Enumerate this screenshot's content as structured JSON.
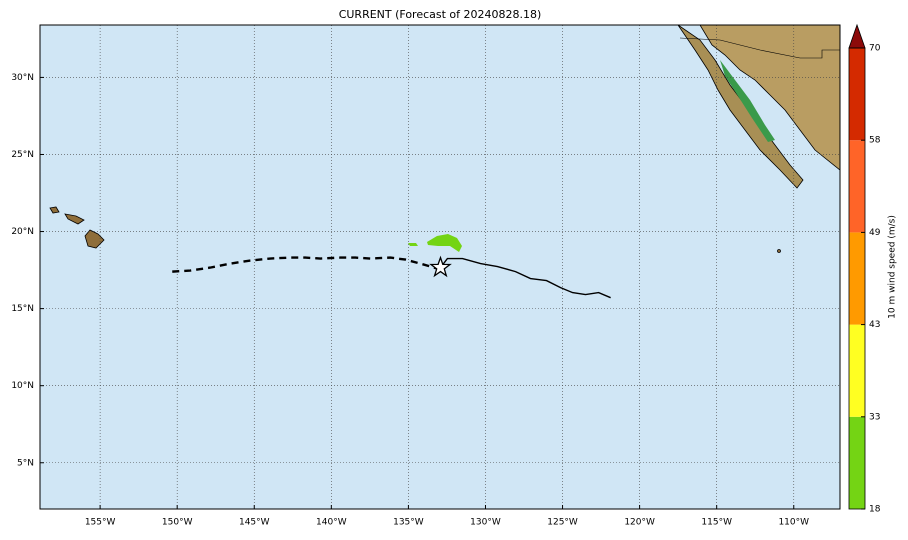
{
  "chart_data": {
    "type": "map",
    "title": "CURRENT (Forecast of 20240828.18)",
    "xlim": [
      -158.9,
      -107.0
    ],
    "ylim": [
      2.0,
      33.4
    ],
    "xticks": [
      {
        "value": -155,
        "label": "155°W"
      },
      {
        "value": -150,
        "label": "150°W"
      },
      {
        "value": -145,
        "label": "145°W"
      },
      {
        "value": -140,
        "label": "140°W"
      },
      {
        "value": -135,
        "label": "135°W"
      },
      {
        "value": -130,
        "label": "130°W"
      },
      {
        "value": -125,
        "label": "125°W"
      },
      {
        "value": -120,
        "label": "120°W"
      },
      {
        "value": -115,
        "label": "115°W"
      },
      {
        "value": -110,
        "label": "110°W"
      }
    ],
    "yticks": [
      {
        "value": 5,
        "label": "5°N"
      },
      {
        "value": 10,
        "label": "10°N"
      },
      {
        "value": 15,
        "label": "15°N"
      },
      {
        "value": 20,
        "label": "20°N"
      },
      {
        "value": 25,
        "label": "25°N"
      },
      {
        "value": 30,
        "label": "30°N"
      }
    ],
    "grid": true,
    "series": [
      {
        "color": "#000000",
        "style": "dashed",
        "x": [
          -150.32,
          -149.16,
          -147.86,
          -146.56,
          -145.26,
          -143.96,
          -142.66,
          -141.69,
          -140.71,
          -139.42,
          -138.44,
          -137.47,
          -136.17,
          -135.19,
          -134.22,
          -133.12
        ],
        "values": [
          17.4,
          17.47,
          17.66,
          17.92,
          18.12,
          18.25,
          18.31,
          18.31,
          18.25,
          18.31,
          18.31,
          18.25,
          18.31,
          18.18,
          17.92,
          17.6
        ]
      },
      {
        "color": "#000000",
        "style": "solid",
        "x": [
          -132.92,
          -132.47,
          -131.49,
          -130.32,
          -129.22,
          -128.05,
          -127.08,
          -126.04,
          -125.13,
          -124.35,
          -123.51,
          -122.66,
          -121.88
        ],
        "values": [
          17.66,
          18.25,
          18.25,
          17.92,
          17.73,
          17.4,
          16.95,
          16.82,
          16.36,
          16.04,
          15.91,
          16.04,
          15.71
        ]
      }
    ],
    "marker": {
      "x": -132.92,
      "y": 17.66
    },
    "colorbar": {
      "label": "10 m wind speed (m/s)",
      "ticks": [
        18,
        33,
        43,
        49,
        58,
        70
      ],
      "colors": [
        "#74d414",
        "#ffff22",
        "#ff9a00",
        "#ff6428",
        "#d42a00"
      ],
      "extend_color": "#8c0a0a"
    }
  }
}
